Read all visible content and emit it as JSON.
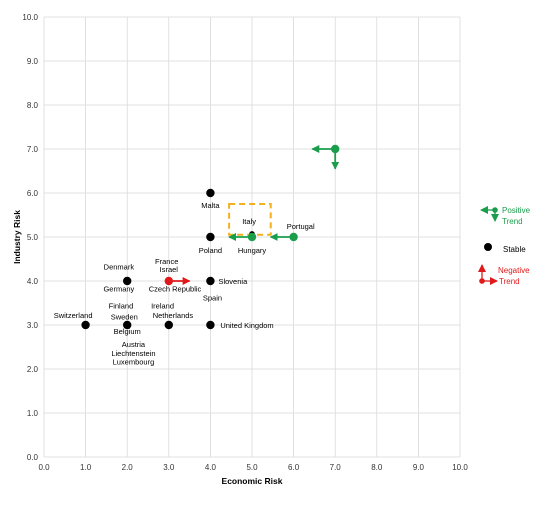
{
  "chart_data": {
    "type": "scatter",
    "title": "",
    "xlabel": "Economic Risk",
    "ylabel": "Industry Risk",
    "xlim": [
      0,
      10
    ],
    "ylim": [
      0,
      10
    ],
    "x_ticks": [
      "0.0",
      "1.0",
      "2.0",
      "3.0",
      "4.0",
      "5.0",
      "6.0",
      "7.0",
      "8.0",
      "9.0",
      "10.0"
    ],
    "y_ticks": [
      "0.0",
      "1.0",
      "2.0",
      "3.0",
      "4.0",
      "5.0",
      "6.0",
      "7.0",
      "8.0",
      "9.0",
      "10.0"
    ],
    "grid": true,
    "colors": {
      "stable": "#000000",
      "positive": "#1a9e4b",
      "negative": "#e0191b",
      "highlight": "#f2b01e",
      "grid": "#d9d9d9"
    },
    "points": [
      {
        "label": "Malta",
        "x": 4,
        "y": 6,
        "trend": "stable"
      },
      {
        "label": "Poland",
        "x": 4,
        "y": 5,
        "trend": "stable"
      },
      {
        "label": "Italy",
        "x": 5,
        "y": 5.07,
        "trend": "stable"
      },
      {
        "label": "Hungary",
        "x": 5,
        "y": 5,
        "trend": "positive"
      },
      {
        "label": "Portugal",
        "x": 6,
        "y": 5,
        "trend": "positive"
      },
      {
        "label": "",
        "x": 7,
        "y": 7,
        "trend": "positive"
      },
      {
        "label": "Denmark",
        "x": 2,
        "y": 4,
        "trend": "stable"
      },
      {
        "label": "France",
        "x": 3,
        "y": 4,
        "trend": "negative"
      },
      {
        "label": "Slovenia",
        "x": 4,
        "y": 4,
        "trend": "stable"
      },
      {
        "label": "Switzerland",
        "x": 1,
        "y": 3,
        "trend": "stable"
      },
      {
        "label": "Finland",
        "x": 2,
        "y": 3,
        "trend": "stable"
      },
      {
        "label": "Ireland",
        "x": 3,
        "y": 3,
        "trend": "stable"
      },
      {
        "label": "United Kingdom",
        "x": 4,
        "y": 3,
        "trend": "stable"
      }
    ],
    "annotations": [
      {
        "text": "Malta",
        "x": 4.0,
        "y": 5.66,
        "color": "stable"
      },
      {
        "text": "Italy",
        "x": 4.93,
        "y": 5.3,
        "color": "stable"
      },
      {
        "text": "Portugal",
        "x": 6.17,
        "y": 5.18,
        "color": "stable"
      },
      {
        "text": "Poland",
        "x": 4.0,
        "y": 4.64,
        "color": "stable"
      },
      {
        "text": "Hungary",
        "x": 5.0,
        "y": 4.64,
        "color": "stable"
      },
      {
        "text": "France",
        "x": 2.95,
        "y": 4.39,
        "color": "stable"
      },
      {
        "text": "Israel",
        "x": 3.0,
        "y": 4.2,
        "color": "stable"
      },
      {
        "text": "Denmark",
        "x": 1.8,
        "y": 4.26,
        "color": "stable"
      },
      {
        "text": "Slovenia",
        "x": 4.54,
        "y": 3.93,
        "color": "stable"
      },
      {
        "text": "Germany",
        "x": 1.8,
        "y": 3.76,
        "color": "stable"
      },
      {
        "text": "Czech Republic",
        "x": 3.15,
        "y": 3.76,
        "color": "stable"
      },
      {
        "text": "Spain",
        "x": 4.05,
        "y": 3.56,
        "color": "stable"
      },
      {
        "text": "Finland",
        "x": 1.85,
        "y": 3.37,
        "color": "stable"
      },
      {
        "text": "Ireland",
        "x": 2.85,
        "y": 3.37,
        "color": "stable"
      },
      {
        "text": "Switzerland",
        "x": 0.7,
        "y": 3.16,
        "color": "stable"
      },
      {
        "text": "Sweden",
        "x": 1.93,
        "y": 3.13,
        "color": "stable"
      },
      {
        "text": "Netherlands",
        "x": 3.1,
        "y": 3.16,
        "color": "stable"
      },
      {
        "text": "United Kingdom",
        "x": 4.88,
        "y": 2.93,
        "color": "stable"
      },
      {
        "text": "Belgium",
        "x": 2.0,
        "y": 2.8,
        "color": "stable"
      },
      {
        "text": "Austria",
        "x": 2.15,
        "y": 2.5,
        "color": "stable"
      },
      {
        "text": "Liechtenstein",
        "x": 2.15,
        "y": 2.3,
        "color": "stable"
      },
      {
        "text": "Luxembourg",
        "x": 2.15,
        "y": 2.1,
        "color": "stable"
      }
    ],
    "legend": {
      "placement": "right",
      "items": [
        {
          "line1": "Positive",
          "line2": "Trend",
          "color": "positive"
        },
        {
          "line1": "Stable",
          "line2": "",
          "color": "stable"
        },
        {
          "line1": "Negative",
          "line2": "Trend",
          "color": "negative"
        }
      ]
    }
  }
}
